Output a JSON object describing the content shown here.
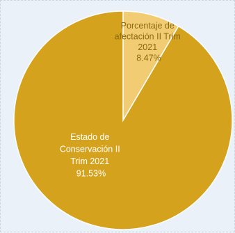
{
  "chart_data": {
    "type": "pie",
    "slices": [
      {
        "label_lines": [
          "Porcentaje de",
          "afectación II Trim",
          "2021",
          "8.47%"
        ],
        "value": 8.47,
        "color": "#f2cc72"
      },
      {
        "label_lines": [
          "Estado de",
          "Conservación II",
          "Trim 2021",
          "91.53%"
        ],
        "value": 91.53,
        "color": "#d4a21c"
      }
    ],
    "start_angle_deg": 0,
    "direction": "clockwise",
    "slice_border_color": "#ffffff"
  }
}
